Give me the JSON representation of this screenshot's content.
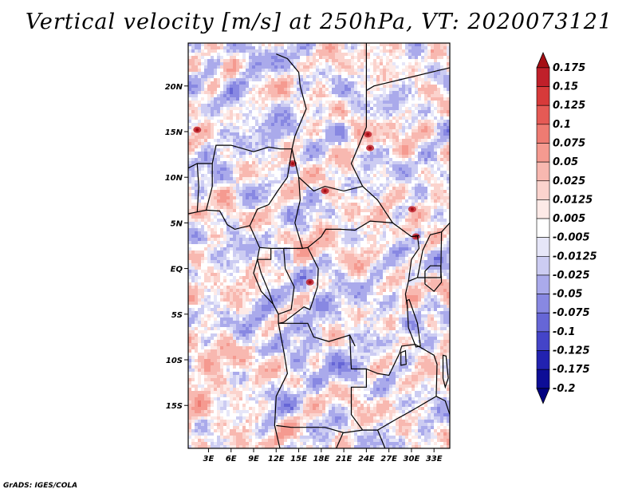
{
  "chart_data": {
    "type": "heatmap",
    "title": "Vertical velocity [m/s] at 250hPa, VT: 2020073121",
    "variable": "Vertical velocity",
    "units": "m/s",
    "level": "250hPa",
    "valid_time": "2020073121",
    "x_ticks": [
      3,
      6,
      9,
      12,
      15,
      18,
      21,
      24,
      27,
      30,
      33
    ],
    "x_tick_labels": [
      "3E",
      "6E",
      "9E",
      "12E",
      "15E",
      "18E",
      "21E",
      "24E",
      "27E",
      "30E",
      "33E"
    ],
    "y_ticks": [
      20,
      15,
      10,
      5,
      0,
      -5,
      -10,
      -15
    ],
    "y_tick_labels": [
      "20N",
      "15N",
      "10N",
      "5N",
      "EQ",
      "5S",
      "10S",
      "15S"
    ],
    "xlim": [
      0.3,
      35.1
    ],
    "ylim": [
      -19.7,
      24.7
    ],
    "colorbar": {
      "levels": [
        "0.175",
        "0.15",
        "0.125",
        "0.1",
        "0.075",
        "0.05",
        "0.025",
        "0.0125",
        "0.005",
        "-0.005",
        "-0.0125",
        "-0.025",
        "-0.05",
        "-0.075",
        "-0.1",
        "-0.125",
        "-0.175",
        "-0.2"
      ],
      "colors": [
        "#a50f15",
        "#c0202a",
        "#d73a3a",
        "#e55a55",
        "#ee7b72",
        "#f59a90",
        "#f8b8b0",
        "#fbd3cd",
        "#fdeae7",
        "#ffffff",
        "#e6e6f8",
        "#ccccf2",
        "#aaaaeb",
        "#8888e2",
        "#6666d6",
        "#4444c8",
        "#2222b0",
        "#0d0d96",
        "#000080"
      ]
    }
  },
  "footer": "GrADS: IGES/COLA"
}
